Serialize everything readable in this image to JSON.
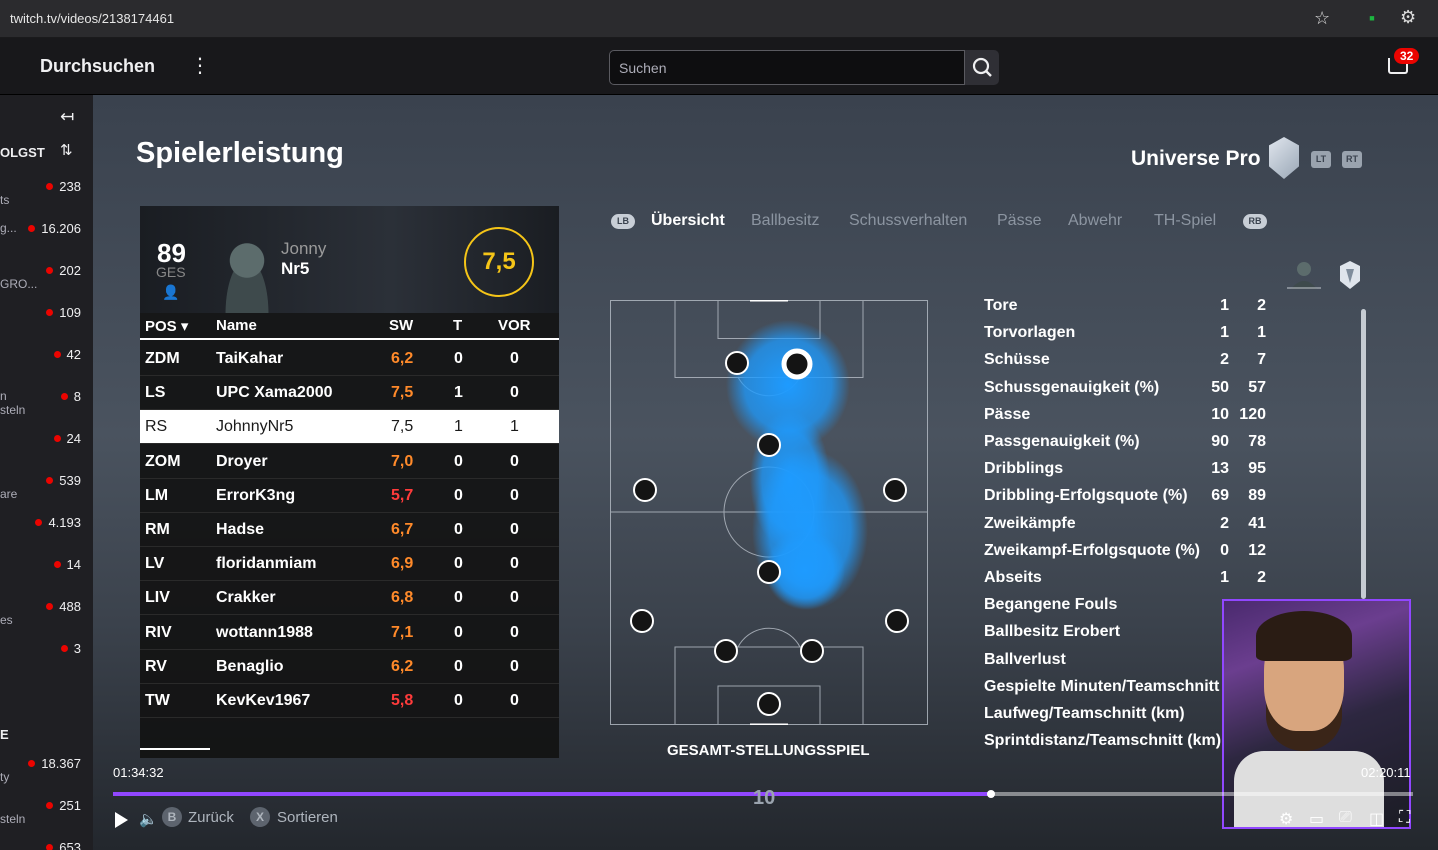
{
  "browser": {
    "url": "twitch.tv/videos/2138174461"
  },
  "nav": {
    "browse": "Durchsuchen",
    "search_placeholder": "Suchen",
    "notification_count": "32"
  },
  "sidebar": {
    "followed_label": "OLGST",
    "section_label": "E",
    "channels": [
      {
        "name": "",
        "viewers": "238"
      },
      {
        "name": "ts",
        "viewers": ""
      },
      {
        "name": "g...",
        "viewers": "16.206"
      },
      {
        "name": "",
        "viewers": "202"
      },
      {
        "name": "GRO...",
        "viewers": ""
      },
      {
        "name": "",
        "viewers": "109"
      },
      {
        "name": "",
        "viewers": "42"
      },
      {
        "name": "n",
        "viewers": "8"
      },
      {
        "name": "steln",
        "viewers": ""
      },
      {
        "name": "",
        "viewers": "24"
      },
      {
        "name": "",
        "viewers": "539"
      },
      {
        "name": "are",
        "viewers": ""
      },
      {
        "name": "",
        "viewers": "4.193"
      },
      {
        "name": "",
        "viewers": "14"
      },
      {
        "name": "",
        "viewers": "488"
      },
      {
        "name": "es",
        "viewers": ""
      },
      {
        "name": "",
        "viewers": "3"
      },
      {
        "name": "",
        "viewers": "18.367"
      },
      {
        "name": "ty",
        "viewers": ""
      },
      {
        "name": "",
        "viewers": "251"
      },
      {
        "name": "steln",
        "viewers": ""
      },
      {
        "name": "",
        "viewers": "653"
      }
    ]
  },
  "game": {
    "title": "Spielerleistung",
    "team": "Universe Pro",
    "btn_lt": "LT",
    "btn_rt": "RT",
    "player": {
      "ovr": "89",
      "ovr_label": "GES",
      "first_name": "Jonny",
      "last_name": "Nr5",
      "rating": "7,5"
    },
    "columns": {
      "pos": "POS",
      "name": "Name",
      "sw": "SW",
      "t": "T",
      "vor": "VOR"
    },
    "roster": [
      {
        "pos": "ZDM",
        "name": "TaiKahar",
        "sw": "6,2",
        "t": "0",
        "vor": "0",
        "low": false
      },
      {
        "pos": "LS",
        "name": "UPC Xama2000",
        "sw": "7,5",
        "t": "1",
        "vor": "0",
        "low": false
      },
      {
        "pos": "RS",
        "name": "JohnnyNr5",
        "sw": "7,5",
        "t": "1",
        "vor": "1",
        "low": false
      },
      {
        "pos": "ZOM",
        "name": "Droyer",
        "sw": "7,0",
        "t": "0",
        "vor": "0",
        "low": false
      },
      {
        "pos": "LM",
        "name": "ErrorK3ng",
        "sw": "5,7",
        "t": "0",
        "vor": "0",
        "low": true
      },
      {
        "pos": "RM",
        "name": "Hadse",
        "sw": "6,7",
        "t": "0",
        "vor": "0",
        "low": false
      },
      {
        "pos": "LV",
        "name": "floridanmiam",
        "sw": "6,9",
        "t": "0",
        "vor": "0",
        "low": false
      },
      {
        "pos": "LIV",
        "name": "Crakker",
        "sw": "6,8",
        "t": "0",
        "vor": "0",
        "low": false
      },
      {
        "pos": "RIV",
        "name": "wottann1988",
        "sw": "7,1",
        "t": "0",
        "vor": "0",
        "low": false
      },
      {
        "pos": "RV",
        "name": "Benaglio",
        "sw": "6,2",
        "t": "0",
        "vor": "0",
        "low": false
      },
      {
        "pos": "TW",
        "name": "KevKev1967",
        "sw": "5,8",
        "t": "0",
        "vor": "0",
        "low": true
      }
    ],
    "tabs": {
      "lb": "LB",
      "rb": "RB",
      "items": [
        "Übersicht",
        "Ballbesitz",
        "Schussverhalten",
        "Pässe",
        "Abwehr",
        "TH-Spiel"
      ]
    },
    "pitch_label": "GESAMT-STELLUNGSSPIEL",
    "stats": [
      {
        "label": "Tore",
        "a": "1",
        "b": "2"
      },
      {
        "label": "Torvorlagen",
        "a": "1",
        "b": "1"
      },
      {
        "label": "Schüsse",
        "a": "2",
        "b": "7"
      },
      {
        "label": "Schussgenauigkeit (%)",
        "a": "50",
        "b": "57"
      },
      {
        "label": "Pässe",
        "a": "10",
        "b": "120"
      },
      {
        "label": "Passgenauigkeit (%)",
        "a": "90",
        "b": "78"
      },
      {
        "label": "Dribblings",
        "a": "13",
        "b": "95"
      },
      {
        "label": "Dribbling-Erfolgsquote (%)",
        "a": "69",
        "b": "89"
      },
      {
        "label": "Zweikämpfe",
        "a": "2",
        "b": "41"
      },
      {
        "label": "Zweikampf-Erfolgsquote (%)",
        "a": "0",
        "b": "12"
      },
      {
        "label": "Abseits",
        "a": "1",
        "b": "2"
      },
      {
        "label": "Begangene Fouls",
        "a": "",
        "b": ""
      },
      {
        "label": "Ballbesitz Erobert",
        "a": "",
        "b": ""
      },
      {
        "label": "Ballverlust",
        "a": "",
        "b": ""
      },
      {
        "label": "Gespielte Minuten/Teamschnitt",
        "a": "",
        "b": ""
      },
      {
        "label": "Laufweg/Teamschnitt (km)",
        "a": "",
        "b": ""
      },
      {
        "label": "Sprintdistanz/Teamschnitt (km)",
        "a": "",
        "b": ""
      }
    ],
    "hud": {
      "back_btn": "B",
      "back": "Zurück",
      "sort_btn": "X",
      "sort": "Sortieren",
      "ten": "10"
    }
  },
  "player": {
    "time_elapsed": "01:34:32",
    "time_total": "02:20:11",
    "progress": 0.675
  },
  "colors": {
    "accent": "#9147ff",
    "rating": "#f5c518",
    "heat": "#1e9bff"
  }
}
